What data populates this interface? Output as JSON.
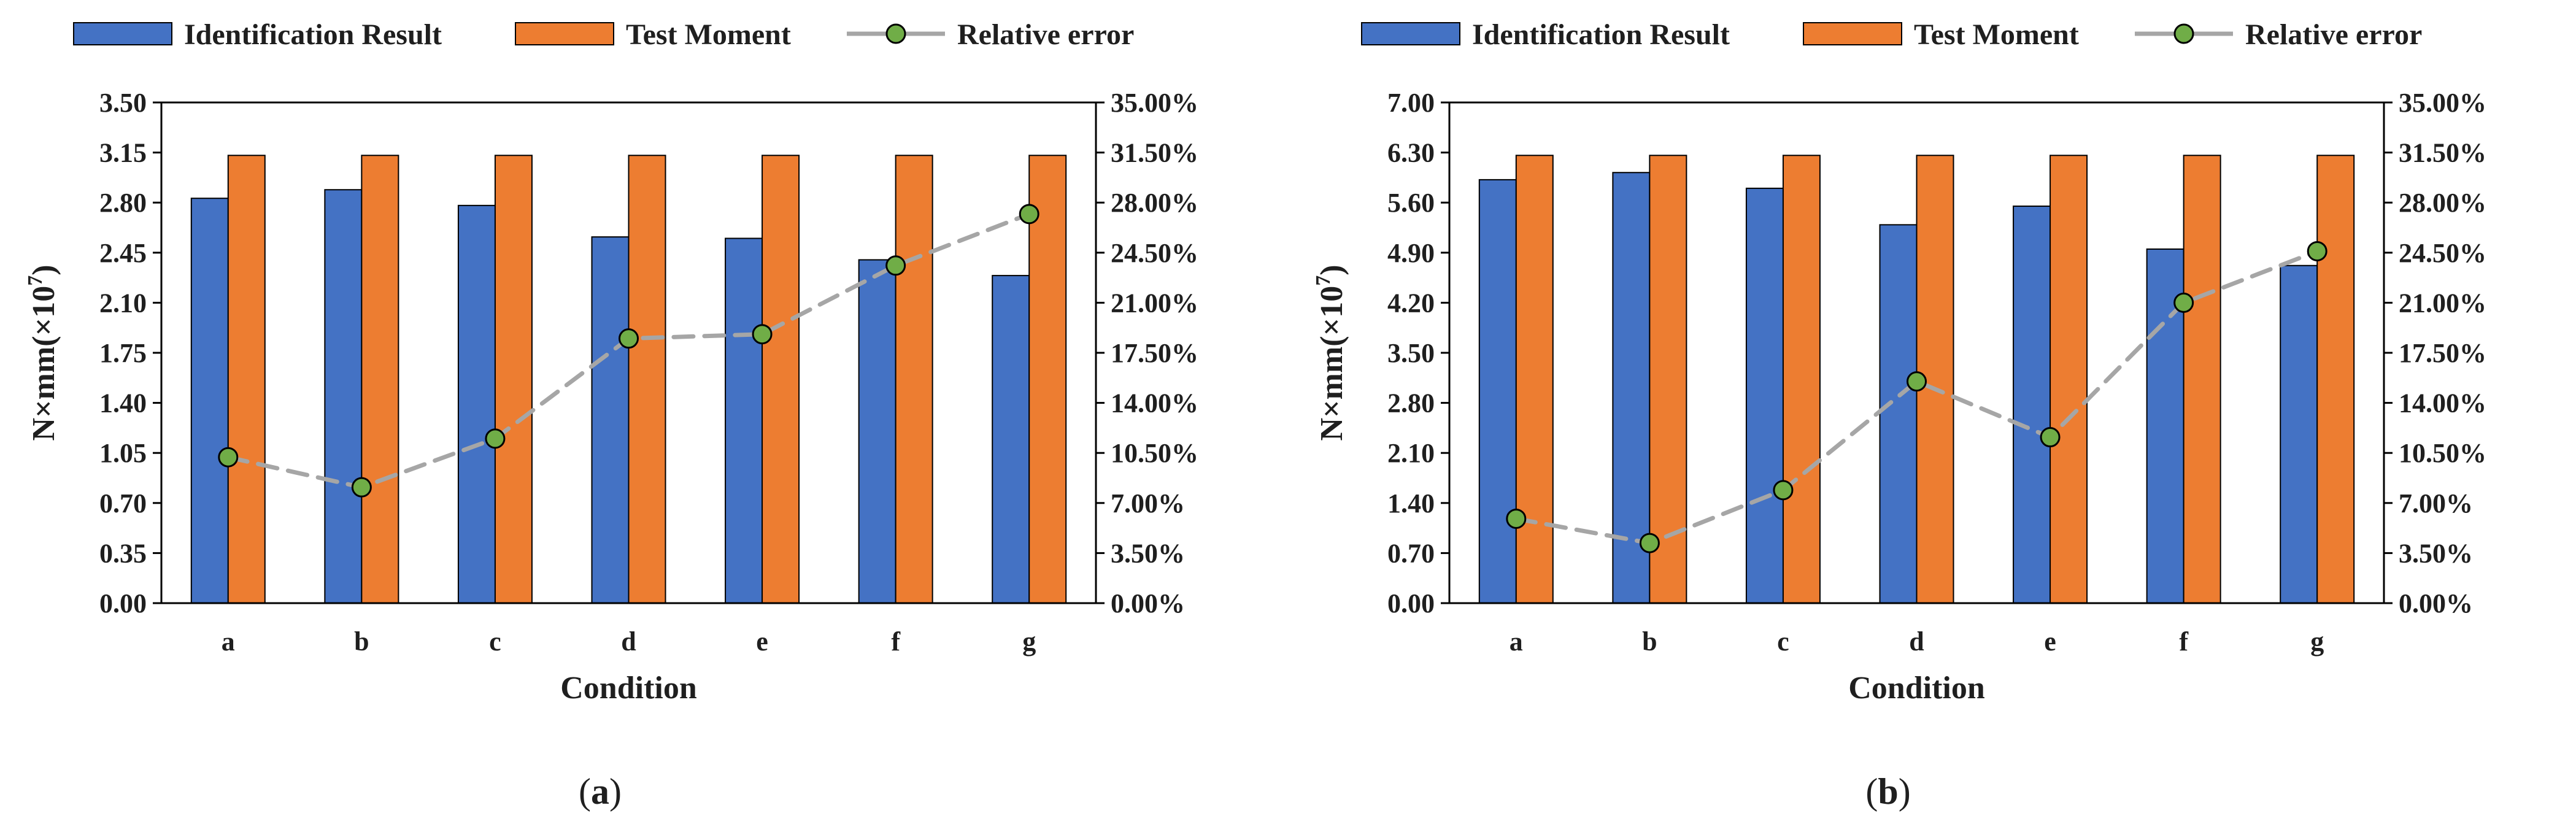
{
  "colors": {
    "identification": "#4472C4",
    "test": "#ED7D31",
    "error_line": "#A6A6A6",
    "error_marker": "#70AD47",
    "axis": "#000000"
  },
  "chart_data": [
    {
      "panel": "a",
      "caption_open": "(",
      "caption_letter": "a",
      "caption_close": ")",
      "type": "bar",
      "legend": [
        "Identification Result",
        "Test Moment",
        "Relative error"
      ],
      "categories": [
        "a",
        "b",
        "c",
        "d",
        "e",
        "f",
        "g"
      ],
      "series": [
        {
          "name": "Identification Result",
          "axis": "left",
          "values": [
            2.83,
            2.89,
            2.78,
            2.56,
            2.55,
            2.4,
            2.29
          ]
        },
        {
          "name": "Test Moment",
          "axis": "left",
          "values": [
            3.13,
            3.13,
            3.13,
            3.13,
            3.13,
            3.13,
            3.13
          ]
        },
        {
          "name": "Relative error",
          "axis": "right",
          "type": "line",
          "style": "dashed",
          "values": [
            10.2,
            8.1,
            11.5,
            18.5,
            18.8,
            23.6,
            27.2
          ]
        }
      ],
      "xlabel": "Condition",
      "ylabel": "N×mm(×10",
      "ylabel_exp": "7",
      "ylabel_close": ")",
      "ylim": [
        0,
        3.5
      ],
      "yticks": [
        "0.00",
        "0.35",
        "0.70",
        "1.05",
        "1.40",
        "1.75",
        "2.10",
        "2.45",
        "2.80",
        "3.15",
        "3.50"
      ],
      "y2lim": [
        0,
        35
      ],
      "y2ticks": [
        "0.00%",
        "3.50%",
        "7.00%",
        "10.50%",
        "14.00%",
        "17.50%",
        "21.00%",
        "24.50%",
        "28.00%",
        "31.50%",
        "35.00%"
      ],
      "grid": false,
      "legend_position": "top"
    },
    {
      "panel": "b",
      "caption_open": "(",
      "caption_letter": "b",
      "caption_close": ")",
      "type": "bar",
      "legend": [
        "Identification Result",
        "Test Moment",
        "Relative error"
      ],
      "categories": [
        "a",
        "b",
        "c",
        "d",
        "e",
        "f",
        "g"
      ],
      "series": [
        {
          "name": "Identification Result",
          "axis": "left",
          "values": [
            5.92,
            6.02,
            5.8,
            5.29,
            5.55,
            4.95,
            4.72
          ]
        },
        {
          "name": "Test Moment",
          "axis": "left",
          "values": [
            6.26,
            6.26,
            6.26,
            6.26,
            6.26,
            6.26,
            6.26
          ]
        },
        {
          "name": "Relative error",
          "axis": "right",
          "type": "line",
          "style": "dashed",
          "values": [
            5.9,
            4.2,
            7.9,
            15.5,
            11.6,
            21.0,
            24.6
          ]
        }
      ],
      "xlabel": "Condition",
      "ylabel": "N×mm(×10",
      "ylabel_exp": "7",
      "ylabel_close": ")",
      "ylim": [
        0,
        7.0
      ],
      "yticks": [
        "0.00",
        "0.70",
        "1.40",
        "2.10",
        "2.80",
        "3.50",
        "4.20",
        "4.90",
        "5.60",
        "6.30",
        "7.00"
      ],
      "y2lim": [
        0,
        35
      ],
      "y2ticks": [
        "0.00%",
        "3.50%",
        "7.00%",
        "10.50%",
        "14.00%",
        "17.50%",
        "21.00%",
        "24.50%",
        "28.00%",
        "31.50%",
        "35.00%"
      ],
      "grid": false,
      "legend_position": "top"
    }
  ]
}
